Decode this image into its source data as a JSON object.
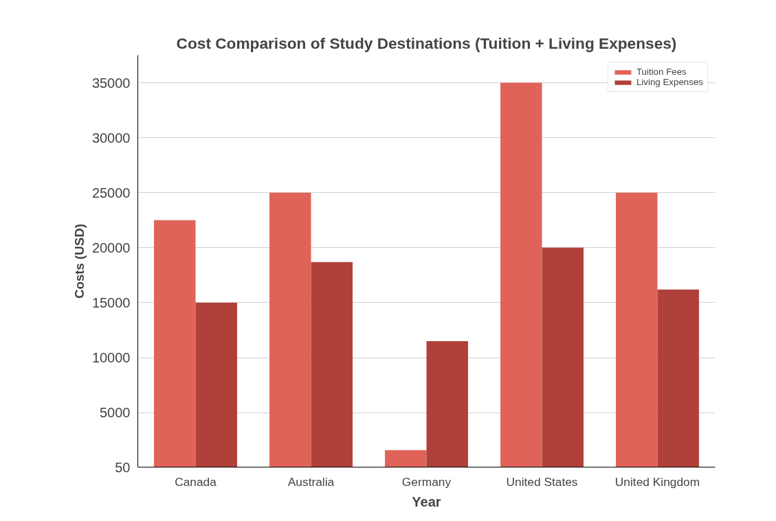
{
  "chart_data": {
    "type": "bar",
    "title": "Cost Comparison of Study Destinations (Tuition + Living Expenses)",
    "xlabel": "Year",
    "ylabel": "Costs (USD)",
    "categories": [
      "Canada",
      "Australia",
      "Germany",
      "United States",
      "United Kingdom"
    ],
    "series": [
      {
        "name": "Tuition Fees",
        "color": "#e0635a",
        "values": [
          22500,
          25000,
          1600,
          35000,
          25000
        ]
      },
      {
        "name": "Living Expenses",
        "color": "#b0413a",
        "values": [
          15000,
          18700,
          11500,
          20000,
          16200
        ]
      }
    ],
    "ylim": [
      50,
      37500
    ],
    "yticks": [
      50,
      5000,
      10000,
      15000,
      20000,
      25000,
      30000,
      35000
    ],
    "grid": "y",
    "legend": "top right"
  }
}
